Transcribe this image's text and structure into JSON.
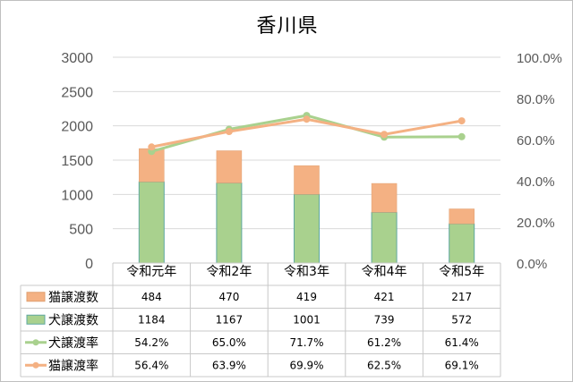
{
  "chart_data": {
    "type": "bar",
    "title": "香川県",
    "categories": [
      "令和元年",
      "令和2年",
      "令和3年",
      "令和4年",
      "令和5年"
    ],
    "series": [
      {
        "name": "猫譲渡数",
        "kind": "stacked-bar",
        "axis": "left",
        "color": "#f4b183",
        "values": [
          484,
          470,
          419,
          421,
          217
        ]
      },
      {
        "name": "犬譲渡数",
        "kind": "stacked-bar",
        "axis": "left",
        "color": "#a9d18e",
        "values": [
          1184,
          1167,
          1001,
          739,
          572
        ]
      },
      {
        "name": "犬譲渡率",
        "kind": "line",
        "axis": "right",
        "color": "#a9d18e",
        "values": [
          54.2,
          65.0,
          71.7,
          61.2,
          61.4
        ]
      },
      {
        "name": "猫譲渡率",
        "kind": "line",
        "axis": "right",
        "color": "#f4b183",
        "values": [
          56.4,
          63.9,
          69.9,
          62.5,
          69.1
        ]
      }
    ],
    "table_rows": [
      {
        "legend": "猫譲渡数",
        "cells": [
          "484",
          "470",
          "419",
          "421",
          "217"
        ]
      },
      {
        "legend": "犬譲渡数",
        "cells": [
          "1184",
          "1167",
          "1001",
          "739",
          "572"
        ]
      },
      {
        "legend": "犬譲渡率",
        "cells": [
          "54.2%",
          "65.0%",
          "71.7%",
          "61.2%",
          "61.4%"
        ]
      },
      {
        "legend": "猫譲渡率",
        "cells": [
          "56.4%",
          "63.9%",
          "69.9%",
          "62.5%",
          "69.1%"
        ]
      }
    ],
    "ylim_left": [
      0,
      3000
    ],
    "left_ticks": [
      "0",
      "500",
      "1000",
      "1500",
      "2000",
      "2500",
      "3000"
    ],
    "ylim_right": [
      0,
      100
    ],
    "right_ticks": [
      "0.0%",
      "20.0%",
      "40.0%",
      "60.0%",
      "80.0%",
      "100.0%"
    ],
    "grid": true,
    "legend_position": "data-table"
  }
}
